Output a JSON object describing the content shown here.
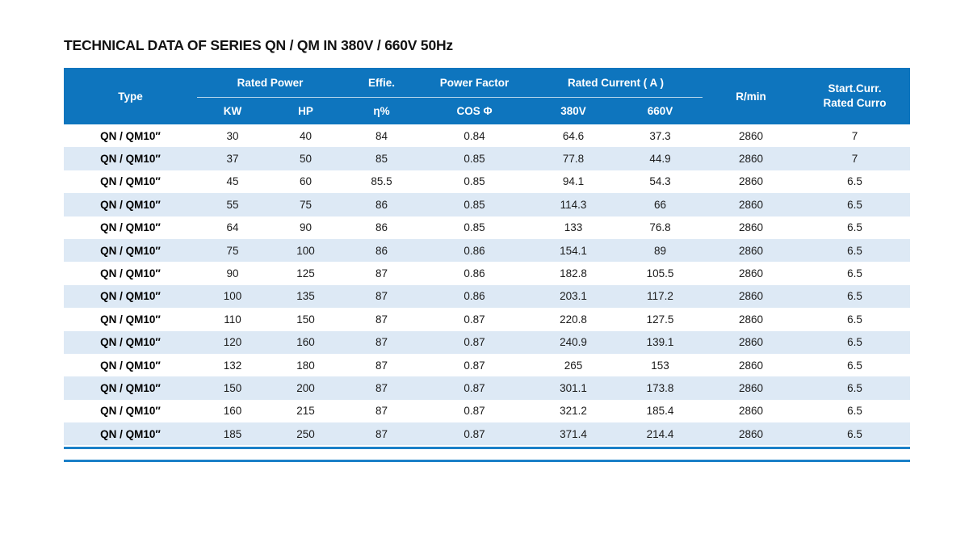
{
  "page": {
    "title": "TECHNICAL DATA OF SERIES QN / QM IN 380V / 660V 50Hz"
  },
  "colors": {
    "header_blue": "#0e75be",
    "stripe_blue": "#dde9f5",
    "rule_blue": "#1b80c8",
    "text_dark": "#1b1b1b"
  },
  "table": {
    "header": {
      "type": "Type",
      "rated_power": "Rated Power",
      "kw": "KW",
      "hp": "HP",
      "effie": "Effie.",
      "eta": "η%",
      "power_factor": "Power Factor",
      "cos": "COS Φ",
      "rated_current": "Rated Current ( A )",
      "v380": "380V",
      "v660": "660V",
      "rmin": "R/min",
      "start_curr_line1": "Start.Curr.",
      "start_curr_line2": "Rated Curro"
    },
    "columns_order": [
      "type",
      "kw",
      "hp",
      "eta",
      "cos",
      "a380",
      "a660",
      "rmin",
      "start"
    ],
    "rows": [
      {
        "type": "QN / QM10″",
        "kw": "30",
        "hp": "40",
        "eta": "84",
        "cos": "0.84",
        "a380": "64.6",
        "a660": "37.3",
        "rmin": "2860",
        "start": "7"
      },
      {
        "type": "QN / QM10″",
        "kw": "37",
        "hp": "50",
        "eta": "85",
        "cos": "0.85",
        "a380": "77.8",
        "a660": "44.9",
        "rmin": "2860",
        "start": "7"
      },
      {
        "type": "QN / QM10″",
        "kw": "45",
        "hp": "60",
        "eta": "85.5",
        "cos": "0.85",
        "a380": "94.1",
        "a660": "54.3",
        "rmin": "2860",
        "start": "6.5"
      },
      {
        "type": "QN / QM10″",
        "kw": "55",
        "hp": "75",
        "eta": "86",
        "cos": "0.85",
        "a380": "114.3",
        "a660": "66",
        "rmin": "2860",
        "start": "6.5"
      },
      {
        "type": "QN / QM10″",
        "kw": "64",
        "hp": "90",
        "eta": "86",
        "cos": "0.85",
        "a380": "133",
        "a660": "76.8",
        "rmin": "2860",
        "start": "6.5"
      },
      {
        "type": "QN / QM10″",
        "kw": "75",
        "hp": "100",
        "eta": "86",
        "cos": "0.86",
        "a380": "154.1",
        "a660": "89",
        "rmin": "2860",
        "start": "6.5"
      },
      {
        "type": "QN / QM10″",
        "kw": "90",
        "hp": "125",
        "eta": "87",
        "cos": "0.86",
        "a380": "182.8",
        "a660": "105.5",
        "rmin": "2860",
        "start": "6.5"
      },
      {
        "type": "QN / QM10″",
        "kw": "100",
        "hp": "135",
        "eta": "87",
        "cos": "0.86",
        "a380": "203.1",
        "a660": "117.2",
        "rmin": "2860",
        "start": "6.5"
      },
      {
        "type": "QN / QM10″",
        "kw": "110",
        "hp": "150",
        "eta": "87",
        "cos": "0.87",
        "a380": "220.8",
        "a660": "127.5",
        "rmin": "2860",
        "start": "6.5"
      },
      {
        "type": "QN / QM10″",
        "kw": "120",
        "hp": "160",
        "eta": "87",
        "cos": "0.87",
        "a380": "240.9",
        "a660": "139.1",
        "rmin": "2860",
        "start": "6.5"
      },
      {
        "type": "QN / QM10″",
        "kw": "132",
        "hp": "180",
        "eta": "87",
        "cos": "0.87",
        "a380": "265",
        "a660": "153",
        "rmin": "2860",
        "start": "6.5"
      },
      {
        "type": "QN / QM10″",
        "kw": "150",
        "hp": "200",
        "eta": "87",
        "cos": "0.87",
        "a380": "301.1",
        "a660": "173.8",
        "rmin": "2860",
        "start": "6.5"
      },
      {
        "type": "QN / QM10″",
        "kw": "160",
        "hp": "215",
        "eta": "87",
        "cos": "0.87",
        "a380": "321.2",
        "a660": "185.4",
        "rmin": "2860",
        "start": "6.5"
      },
      {
        "type": "QN / QM10″",
        "kw": "185",
        "hp": "250",
        "eta": "87",
        "cos": "0.87",
        "a380": "371.4",
        "a660": "214.4",
        "rmin": "2860",
        "start": "6.5"
      }
    ]
  }
}
